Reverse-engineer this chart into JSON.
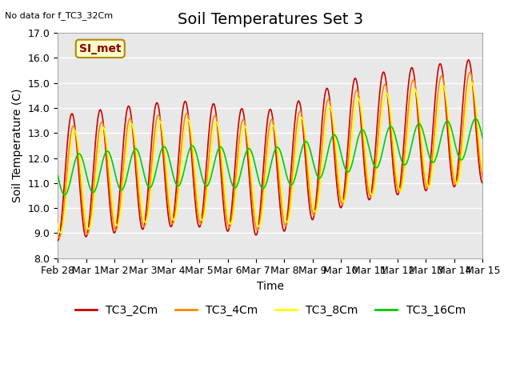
{
  "title": "Soil Temperatures Set 3",
  "top_left_note": "No data for f_TC3_32Cm",
  "annotation_label": "SI_met",
  "xlabel": "Time",
  "ylabel": "Soil Temperature (C)",
  "ylim": [
    8.0,
    17.0
  ],
  "yticks": [
    8.0,
    9.0,
    10.0,
    11.0,
    12.0,
    13.0,
    14.0,
    15.0,
    16.0,
    17.0
  ],
  "xtick_positions": [
    0,
    1,
    2,
    3,
    4,
    5,
    6,
    7,
    8,
    9,
    10,
    11,
    12,
    13,
    14,
    15
  ],
  "xtick_labels": [
    "Feb 28",
    "Mar 1",
    "Mar 2",
    "Mar 3",
    "Mar 4",
    "Mar 5",
    "Mar 6",
    "Mar 7",
    "Mar 8",
    "Mar 9",
    "Mar 10",
    "Mar 11",
    "Mar 12",
    "Mar 13",
    "Mar 14",
    "Mar 15"
  ],
  "bg_color": "#ffffff",
  "plot_bg_color": "#e8e8e8",
  "grid_color": "#ffffff",
  "series": [
    {
      "label": "TC3_2Cm",
      "color": "#cc0000"
    },
    {
      "label": "TC3_4Cm",
      "color": "#ff8800"
    },
    {
      "label": "TC3_8Cm",
      "color": "#ffff00"
    },
    {
      "label": "TC3_16Cm",
      "color": "#00cc00"
    }
  ],
  "title_fontsize": 14,
  "axis_label_fontsize": 10,
  "tick_fontsize": 9,
  "legend_fontsize": 10,
  "n_days": 16
}
